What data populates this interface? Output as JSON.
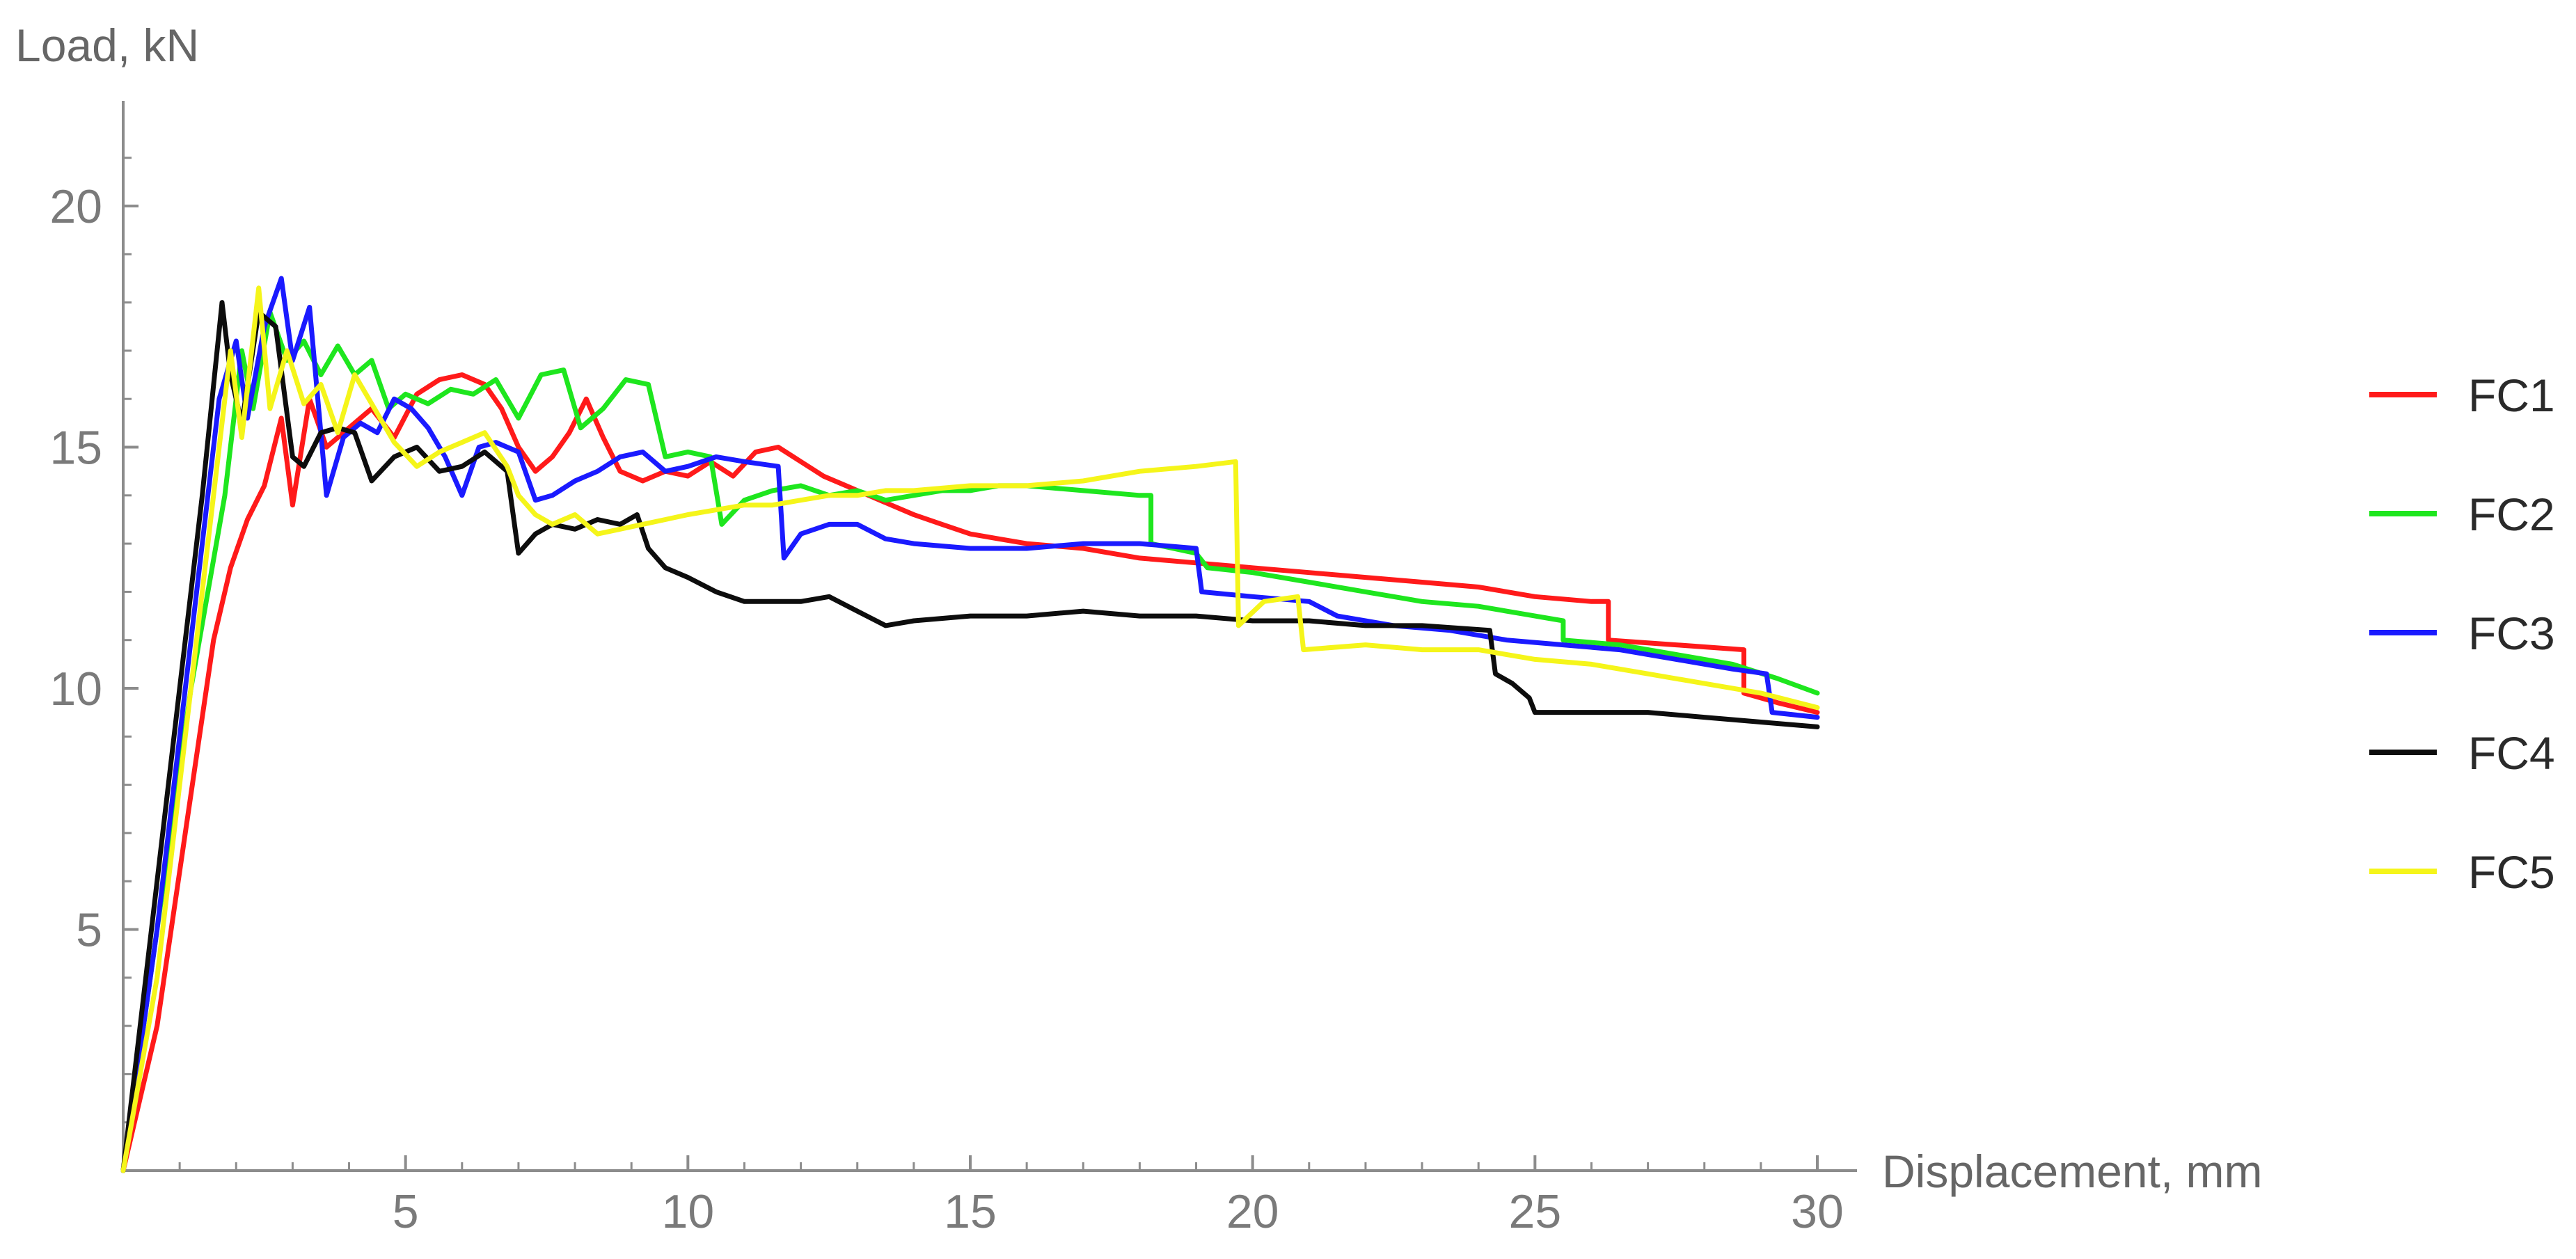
{
  "chart_data": {
    "type": "line",
    "ylabel": "Load, kN",
    "xlabel": "Displacement, mm",
    "xlim": [
      0,
      30.6
    ],
    "ylim": [
      0,
      22
    ],
    "x_ticks": [
      5,
      10,
      15,
      20,
      25,
      30
    ],
    "y_ticks": [
      5,
      10,
      15,
      20
    ],
    "grid": false,
    "legend_position": "right",
    "series": [
      {
        "name": "FC1",
        "color": "#ff1a1a",
        "points": [
          [
            0,
            0
          ],
          [
            0.6,
            3
          ],
          [
            1.1,
            7
          ],
          [
            1.6,
            11
          ],
          [
            1.9,
            12.5
          ],
          [
            2.2,
            13.5
          ],
          [
            2.5,
            14.2
          ],
          [
            2.8,
            15.6
          ],
          [
            3.0,
            13.8
          ],
          [
            3.3,
            16.0
          ],
          [
            3.6,
            15.0
          ],
          [
            4.0,
            15.4
          ],
          [
            4.4,
            15.8
          ],
          [
            4.8,
            15.2
          ],
          [
            5.2,
            16.1
          ],
          [
            5.6,
            16.4
          ],
          [
            6.0,
            16.5
          ],
          [
            6.4,
            16.3
          ],
          [
            6.7,
            15.8
          ],
          [
            7.0,
            15.0
          ],
          [
            7.3,
            14.5
          ],
          [
            7.6,
            14.8
          ],
          [
            7.9,
            15.3
          ],
          [
            8.2,
            16.0
          ],
          [
            8.5,
            15.2
          ],
          [
            8.8,
            14.5
          ],
          [
            9.2,
            14.3
          ],
          [
            9.6,
            14.5
          ],
          [
            10.0,
            14.4
          ],
          [
            10.4,
            14.7
          ],
          [
            10.8,
            14.4
          ],
          [
            11.2,
            14.9
          ],
          [
            11.6,
            15.0
          ],
          [
            12.0,
            14.7
          ],
          [
            12.4,
            14.4
          ],
          [
            12.8,
            14.2
          ],
          [
            13.2,
            14.0
          ],
          [
            13.6,
            13.8
          ],
          [
            14.0,
            13.6
          ],
          [
            14.5,
            13.4
          ],
          [
            15.0,
            13.2
          ],
          [
            15.5,
            13.1
          ],
          [
            16.0,
            13.0
          ],
          [
            17.0,
            12.9
          ],
          [
            18.0,
            12.7
          ],
          [
            19.0,
            12.6
          ],
          [
            20.0,
            12.5
          ],
          [
            21.0,
            12.4
          ],
          [
            22.0,
            12.3
          ],
          [
            23.0,
            12.2
          ],
          [
            24.0,
            12.1
          ],
          [
            25.0,
            11.9
          ],
          [
            26.0,
            11.8
          ],
          [
            26.3,
            11.8
          ],
          [
            26.3,
            11.0
          ],
          [
            27.5,
            10.9
          ],
          [
            28.7,
            10.8
          ],
          [
            28.7,
            9.9
          ],
          [
            29.3,
            9.7
          ],
          [
            30.0,
            9.5
          ]
        ]
      },
      {
        "name": "FC2",
        "color": "#1ee61e",
        "points": [
          [
            0,
            0
          ],
          [
            0.6,
            5
          ],
          [
            1.2,
            10
          ],
          [
            1.8,
            14
          ],
          [
            2.1,
            17.0
          ],
          [
            2.3,
            15.8
          ],
          [
            2.6,
            17.8
          ],
          [
            2.9,
            16.8
          ],
          [
            3.2,
            17.2
          ],
          [
            3.5,
            16.5
          ],
          [
            3.8,
            17.1
          ],
          [
            4.1,
            16.5
          ],
          [
            4.4,
            16.8
          ],
          [
            4.7,
            15.8
          ],
          [
            5.0,
            16.1
          ],
          [
            5.4,
            15.9
          ],
          [
            5.8,
            16.2
          ],
          [
            6.2,
            16.1
          ],
          [
            6.6,
            16.4
          ],
          [
            7.0,
            15.6
          ],
          [
            7.4,
            16.5
          ],
          [
            7.8,
            16.6
          ],
          [
            8.1,
            15.4
          ],
          [
            8.5,
            15.8
          ],
          [
            8.9,
            16.4
          ],
          [
            9.3,
            16.3
          ],
          [
            9.6,
            14.8
          ],
          [
            10.0,
            14.9
          ],
          [
            10.4,
            14.8
          ],
          [
            10.6,
            13.4
          ],
          [
            11.0,
            13.9
          ],
          [
            11.5,
            14.1
          ],
          [
            12.0,
            14.2
          ],
          [
            12.5,
            14.0
          ],
          [
            13.0,
            14.1
          ],
          [
            13.5,
            13.9
          ],
          [
            14.0,
            14.0
          ],
          [
            14.5,
            14.1
          ],
          [
            15.0,
            14.1
          ],
          [
            15.5,
            14.2
          ],
          [
            16.0,
            14.2
          ],
          [
            17.0,
            14.1
          ],
          [
            18.0,
            14.0
          ],
          [
            18.2,
            14.0
          ],
          [
            18.2,
            13.0
          ],
          [
            19.0,
            12.8
          ],
          [
            19.2,
            12.5
          ],
          [
            20.0,
            12.4
          ],
          [
            21.0,
            12.2
          ],
          [
            22.0,
            12.0
          ],
          [
            23.0,
            11.8
          ],
          [
            24.0,
            11.7
          ],
          [
            25.0,
            11.5
          ],
          [
            25.5,
            11.4
          ],
          [
            25.5,
            11.0
          ],
          [
            26.5,
            10.9
          ],
          [
            27.5,
            10.7
          ],
          [
            28.5,
            10.5
          ],
          [
            29.3,
            10.2
          ],
          [
            30.0,
            9.9
          ]
        ]
      },
      {
        "name": "FC3",
        "color": "#1a1aff",
        "points": [
          [
            0,
            0
          ],
          [
            0.6,
            5
          ],
          [
            1.2,
            11
          ],
          [
            1.7,
            16
          ],
          [
            2.0,
            17.2
          ],
          [
            2.2,
            15.6
          ],
          [
            2.5,
            17.5
          ],
          [
            2.8,
            18.5
          ],
          [
            3.0,
            16.8
          ],
          [
            3.3,
            17.9
          ],
          [
            3.6,
            14.0
          ],
          [
            3.9,
            15.2
          ],
          [
            4.2,
            15.5
          ],
          [
            4.5,
            15.3
          ],
          [
            4.8,
            16.0
          ],
          [
            5.1,
            15.8
          ],
          [
            5.4,
            15.4
          ],
          [
            5.7,
            14.8
          ],
          [
            6.0,
            14.0
          ],
          [
            6.3,
            15.0
          ],
          [
            6.6,
            15.1
          ],
          [
            7.0,
            14.9
          ],
          [
            7.3,
            13.9
          ],
          [
            7.6,
            14.0
          ],
          [
            8.0,
            14.3
          ],
          [
            8.4,
            14.5
          ],
          [
            8.8,
            14.8
          ],
          [
            9.2,
            14.9
          ],
          [
            9.6,
            14.5
          ],
          [
            10.0,
            14.6
          ],
          [
            10.5,
            14.8
          ],
          [
            11.0,
            14.7
          ],
          [
            11.6,
            14.6
          ],
          [
            11.7,
            12.7
          ],
          [
            12.0,
            13.2
          ],
          [
            12.5,
            13.4
          ],
          [
            13.0,
            13.4
          ],
          [
            13.5,
            13.1
          ],
          [
            14.0,
            13.0
          ],
          [
            15.0,
            12.9
          ],
          [
            16.0,
            12.9
          ],
          [
            17.0,
            13.0
          ],
          [
            18.0,
            13.0
          ],
          [
            19.0,
            12.9
          ],
          [
            19.1,
            12.0
          ],
          [
            20.0,
            11.9
          ],
          [
            21.0,
            11.8
          ],
          [
            21.5,
            11.5
          ],
          [
            22.5,
            11.3
          ],
          [
            23.5,
            11.2
          ],
          [
            24.5,
            11.0
          ],
          [
            25.5,
            10.9
          ],
          [
            26.5,
            10.8
          ],
          [
            27.5,
            10.6
          ],
          [
            28.5,
            10.4
          ],
          [
            29.1,
            10.3
          ],
          [
            29.2,
            9.5
          ],
          [
            30.0,
            9.4
          ]
        ]
      },
      {
        "name": "FC4",
        "color": "#0d0d0d",
        "points": [
          [
            0,
            0
          ],
          [
            0.5,
            5
          ],
          [
            1.0,
            10
          ],
          [
            1.4,
            14
          ],
          [
            1.75,
            18.0
          ],
          [
            1.9,
            16.5
          ],
          [
            2.1,
            15.5
          ],
          [
            2.4,
            17.8
          ],
          [
            2.7,
            17.5
          ],
          [
            3.0,
            14.8
          ],
          [
            3.2,
            14.6
          ],
          [
            3.5,
            15.3
          ],
          [
            3.8,
            15.4
          ],
          [
            4.1,
            15.3
          ],
          [
            4.4,
            14.3
          ],
          [
            4.8,
            14.8
          ],
          [
            5.2,
            15.0
          ],
          [
            5.6,
            14.5
          ],
          [
            6.0,
            14.6
          ],
          [
            6.4,
            14.9
          ],
          [
            6.8,
            14.5
          ],
          [
            7.0,
            12.8
          ],
          [
            7.3,
            13.2
          ],
          [
            7.6,
            13.4
          ],
          [
            8.0,
            13.3
          ],
          [
            8.4,
            13.5
          ],
          [
            8.8,
            13.4
          ],
          [
            9.1,
            13.6
          ],
          [
            9.3,
            12.9
          ],
          [
            9.6,
            12.5
          ],
          [
            10.0,
            12.3
          ],
          [
            10.5,
            12.0
          ],
          [
            11.0,
            11.8
          ],
          [
            11.5,
            11.8
          ],
          [
            12.0,
            11.8
          ],
          [
            12.5,
            11.9
          ],
          [
            13.0,
            11.6
          ],
          [
            13.5,
            11.3
          ],
          [
            14.0,
            11.4
          ],
          [
            15.0,
            11.5
          ],
          [
            16.0,
            11.5
          ],
          [
            17.0,
            11.6
          ],
          [
            18.0,
            11.5
          ],
          [
            19.0,
            11.5
          ],
          [
            20.0,
            11.4
          ],
          [
            21.0,
            11.4
          ],
          [
            22.0,
            11.3
          ],
          [
            23.0,
            11.3
          ],
          [
            24.2,
            11.2
          ],
          [
            24.3,
            10.3
          ],
          [
            24.6,
            10.1
          ],
          [
            24.9,
            9.8
          ],
          [
            25.0,
            9.5
          ],
          [
            26.0,
            9.5
          ],
          [
            27.0,
            9.5
          ],
          [
            28.0,
            9.4
          ],
          [
            29.0,
            9.3
          ],
          [
            30.0,
            9.2
          ]
        ]
      },
      {
        "name": "FC5",
        "color": "#f5f51a",
        "points": [
          [
            0,
            0
          ],
          [
            0.6,
            4
          ],
          [
            1.1,
            9
          ],
          [
            1.6,
            14
          ],
          [
            1.9,
            17.0
          ],
          [
            2.1,
            15.2
          ],
          [
            2.4,
            18.3
          ],
          [
            2.6,
            15.8
          ],
          [
            2.9,
            17.0
          ],
          [
            3.2,
            15.9
          ],
          [
            3.5,
            16.3
          ],
          [
            3.8,
            15.3
          ],
          [
            4.1,
            16.5
          ],
          [
            4.4,
            15.9
          ],
          [
            4.8,
            15.1
          ],
          [
            5.2,
            14.6
          ],
          [
            5.6,
            14.9
          ],
          [
            6.0,
            15.1
          ],
          [
            6.4,
            15.3
          ],
          [
            6.8,
            14.6
          ],
          [
            7.0,
            14.0
          ],
          [
            7.3,
            13.6
          ],
          [
            7.6,
            13.4
          ],
          [
            8.0,
            13.6
          ],
          [
            8.4,
            13.2
          ],
          [
            8.8,
            13.3
          ],
          [
            9.2,
            13.4
          ],
          [
            9.6,
            13.5
          ],
          [
            10.0,
            13.6
          ],
          [
            10.5,
            13.7
          ],
          [
            11.0,
            13.8
          ],
          [
            11.5,
            13.8
          ],
          [
            12.0,
            13.9
          ],
          [
            12.5,
            14.0
          ],
          [
            13.0,
            14.0
          ],
          [
            13.5,
            14.1
          ],
          [
            14.0,
            14.1
          ],
          [
            15.0,
            14.2
          ],
          [
            16.0,
            14.2
          ],
          [
            17.0,
            14.3
          ],
          [
            18.0,
            14.5
          ],
          [
            19.0,
            14.6
          ],
          [
            19.7,
            14.7
          ],
          [
            19.75,
            11.3
          ],
          [
            20.2,
            11.8
          ],
          [
            20.8,
            11.9
          ],
          [
            20.9,
            10.8
          ],
          [
            22.0,
            10.9
          ],
          [
            23.0,
            10.8
          ],
          [
            24.0,
            10.8
          ],
          [
            25.0,
            10.6
          ],
          [
            26.0,
            10.5
          ],
          [
            27.0,
            10.3
          ],
          [
            28.0,
            10.1
          ],
          [
            29.0,
            9.9
          ],
          [
            30.0,
            9.6
          ]
        ]
      }
    ]
  }
}
